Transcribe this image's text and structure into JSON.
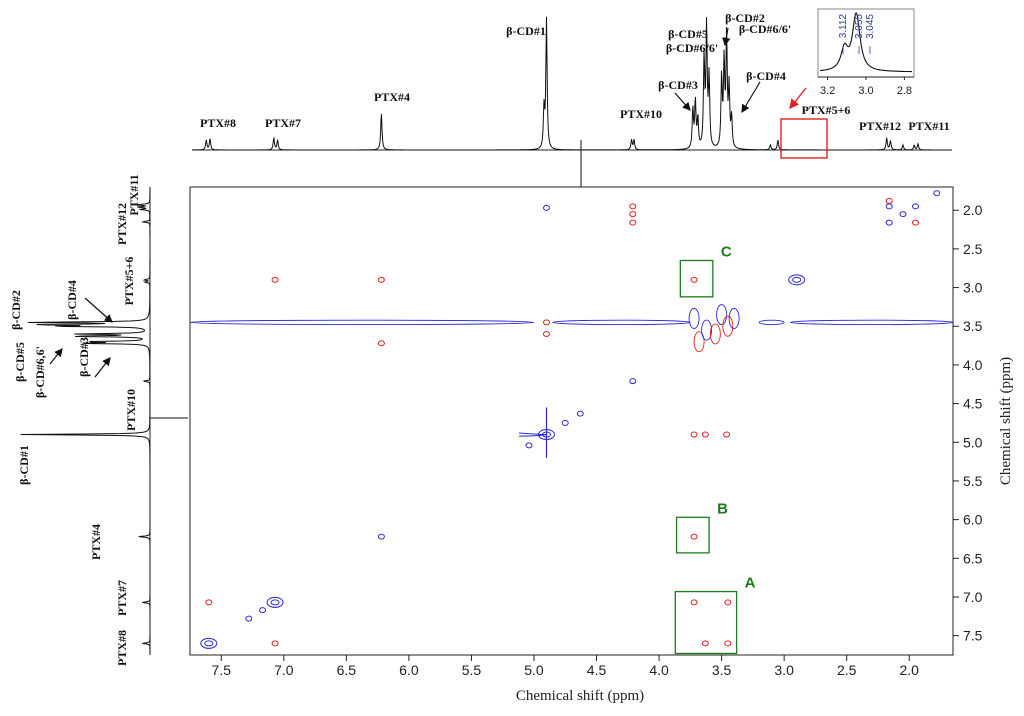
{
  "chart_data": {
    "type": "2D NMR contour plot (ROESY)",
    "x_axis": {
      "label": "Chemical shift (ppm)",
      "range": [
        7.75,
        1.65
      ],
      "ticks": [
        "7.5",
        "7.0",
        "6.5",
        "6.0",
        "5.5",
        "5.0",
        "4.5",
        "4.0",
        "3.5",
        "3.0",
        "2.5",
        "2.0"
      ]
    },
    "y_axis": {
      "label": "Chemical shift (ppm)",
      "range": [
        1.7,
        7.75
      ],
      "ticks": [
        "2.0",
        "2.5",
        "3.0",
        "3.5",
        "4.0",
        "4.5",
        "5.0",
        "5.5",
        "6.0",
        "6.5",
        "7.0",
        "7.5"
      ]
    },
    "top_peak_labels": [
      {
        "text": "PTX#8",
        "ppm": 7.6
      },
      {
        "text": "PTX#7",
        "ppm": 7.07
      },
      {
        "text": "PTX#4",
        "ppm": 6.22
      },
      {
        "text": "β-CD#1",
        "ppm": 4.9
      },
      {
        "text": "PTX#10",
        "ppm": 4.21
      },
      {
        "text": "β-CD#3",
        "ppm": 3.72
      },
      {
        "text": "β-CD#5",
        "ppm": 3.63
      },
      {
        "text": "β-CD#6/6'",
        "ppm": 3.6
      },
      {
        "text": "β-CD#2",
        "ppm": 3.48
      },
      {
        "text": "β-CD#6/6'",
        "ppm": 3.46
      },
      {
        "text": "β-CD#4",
        "ppm": 3.42
      },
      {
        "text": "PTX#5+6",
        "ppm": 2.9
      },
      {
        "text": "PTX#12",
        "ppm": 2.16
      },
      {
        "text": "PTX#11",
        "ppm": 1.95
      }
    ],
    "left_peak_labels": [
      {
        "text": "PTX#11",
        "ppm": 1.95
      },
      {
        "text": "PTX#12",
        "ppm": 2.16
      },
      {
        "text": "PTX#5+6",
        "ppm": 2.9
      },
      {
        "text": "β-CD#2",
        "ppm": 3.48
      },
      {
        "text": "β-CD#4",
        "ppm": 3.42
      },
      {
        "text": "β-CD#5",
        "ppm": 3.63
      },
      {
        "text": "β-CD#6,6'",
        "ppm": 3.6
      },
      {
        "text": "β-CD#3",
        "ppm": 3.72
      },
      {
        "text": "PTX#10",
        "ppm": 4.21
      },
      {
        "text": "β-CD#1",
        "ppm": 4.9
      },
      {
        "text": "PTX#4",
        "ppm": 6.22
      },
      {
        "text": "PTX#7",
        "ppm": 7.07
      },
      {
        "text": "PTX#8",
        "ppm": 7.6
      }
    ],
    "regions": [
      {
        "label": "C",
        "x": [
          3.83,
          3.57
        ],
        "y": [
          2.65,
          3.12
        ]
      },
      {
        "label": "B",
        "x": [
          3.86,
          3.6
        ],
        "y": [
          5.97,
          6.43
        ]
      },
      {
        "label": "A",
        "x": [
          3.87,
          3.38
        ],
        "y": [
          6.93,
          7.73
        ]
      }
    ],
    "inset": {
      "x_ticks": [
        "3.2",
        "3.0",
        "2.8"
      ],
      "x_range": [
        3.25,
        2.75
      ],
      "peak_labels": [
        "3.112",
        "3.055",
        "3.045"
      ]
    },
    "highlight_box": {
      "x": [
        3.03,
        2.67
      ],
      "label_ref": "PTX#5+6"
    },
    "cross_peaks": [
      {
        "x": 7.6,
        "y": 7.6,
        "color": "blue"
      },
      {
        "x": 7.6,
        "y": 7.07,
        "color": "red"
      },
      {
        "x": 7.07,
        "y": 7.6,
        "color": "red"
      },
      {
        "x": 7.07,
        "y": 7.07,
        "color": "blue"
      },
      {
        "x": 7.28,
        "y": 7.28,
        "color": "blue"
      },
      {
        "x": 7.17,
        "y": 7.17,
        "color": "blue"
      },
      {
        "x": 7.07,
        "y": 2.9,
        "color": "red"
      },
      {
        "x": 6.22,
        "y": 2.9,
        "color": "red"
      },
      {
        "x": 6.22,
        "y": 3.72,
        "color": "red"
      },
      {
        "x": 6.22,
        "y": 6.22,
        "color": "blue"
      },
      {
        "x": 4.9,
        "y": 1.97,
        "color": "blue"
      },
      {
        "x": 4.21,
        "y": 1.95,
        "color": "red"
      },
      {
        "x": 4.21,
        "y": 2.05,
        "color": "red"
      },
      {
        "x": 4.21,
        "y": 2.16,
        "color": "red"
      },
      {
        "x": 4.21,
        "y": 4.21,
        "color": "blue"
      },
      {
        "x": 4.63,
        "y": 4.63,
        "color": "blue"
      },
      {
        "x": 4.75,
        "y": 4.75,
        "color": "blue"
      },
      {
        "x": 5.04,
        "y": 5.04,
        "color": "blue"
      },
      {
        "x": 4.9,
        "y": 4.9,
        "color": "blue"
      },
      {
        "x": 4.9,
        "y": 3.45,
        "color": "red"
      },
      {
        "x": 4.9,
        "y": 3.6,
        "color": "red"
      },
      {
        "x": 3.72,
        "y": 4.9,
        "color": "red"
      },
      {
        "x": 3.63,
        "y": 4.9,
        "color": "red"
      },
      {
        "x": 3.46,
        "y": 4.9,
        "color": "red"
      },
      {
        "x": 3.72,
        "y": 2.9,
        "color": "red"
      },
      {
        "x": 3.72,
        "y": 6.22,
        "color": "red"
      },
      {
        "x": 3.72,
        "y": 7.07,
        "color": "red"
      },
      {
        "x": 3.45,
        "y": 7.07,
        "color": "red"
      },
      {
        "x": 3.63,
        "y": 7.6,
        "color": "red"
      },
      {
        "x": 3.45,
        "y": 7.6,
        "color": "red"
      },
      {
        "x": 2.9,
        "y": 2.9,
        "color": "blue"
      },
      {
        "x": 2.16,
        "y": 1.95,
        "color": "blue"
      },
      {
        "x": 2.16,
        "y": 2.16,
        "color": "blue"
      },
      {
        "x": 2.05,
        "y": 2.05,
        "color": "blue"
      },
      {
        "x": 1.95,
        "y": 1.95,
        "color": "blue"
      },
      {
        "x": 1.95,
        "y": 2.16,
        "color": "red"
      },
      {
        "x": 2.16,
        "y": 1.88,
        "color": "red"
      },
      {
        "x": 1.78,
        "y": 1.78,
        "color": "blue"
      }
    ]
  }
}
